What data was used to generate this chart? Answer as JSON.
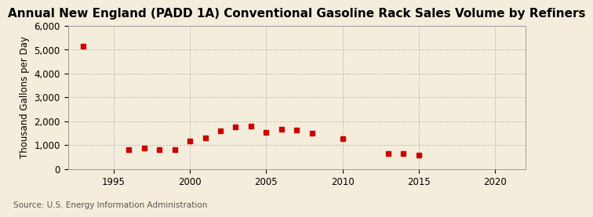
{
  "title": "Annual New England (PADD 1A) Conventional Gasoline Rack Sales Volume by Refiners",
  "ylabel": "Thousand Gallons per Day",
  "source": "Source: U.S. Energy Information Administration",
  "background_color": "#f5eddc",
  "marker_color": "#cc0000",
  "grid_color": "#bbbbbb",
  "years": [
    1993,
    1996,
    1997,
    1998,
    1999,
    2000,
    2001,
    2002,
    2003,
    2004,
    2005,
    2006,
    2007,
    2008,
    2010,
    2013,
    2014,
    2015
  ],
  "values": [
    5150,
    800,
    860,
    820,
    820,
    1180,
    1290,
    1610,
    1760,
    1800,
    1530,
    1660,
    1620,
    1480,
    1250,
    650,
    650,
    570
  ],
  "xlim": [
    1992,
    2022
  ],
  "ylim": [
    0,
    6000
  ],
  "yticks": [
    0,
    1000,
    2000,
    3000,
    4000,
    5000,
    6000
  ],
  "xticks": [
    1995,
    2000,
    2005,
    2010,
    2015,
    2020
  ],
  "title_fontsize": 11,
  "label_fontsize": 8.5,
  "tick_fontsize": 8.5,
  "source_fontsize": 7.5
}
